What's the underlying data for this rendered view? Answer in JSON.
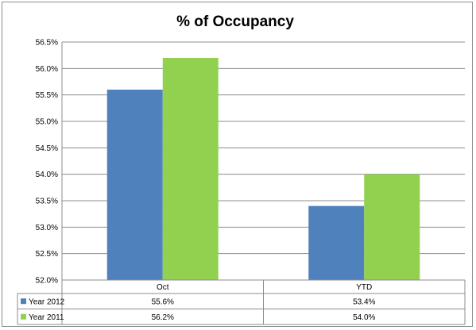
{
  "chart_data": {
    "type": "bar",
    "title": "% of Occupancy",
    "categories": [
      "Oct",
      "YTD"
    ],
    "series": [
      {
        "name": "Year 2012",
        "values": [
          55.6,
          53.4
        ],
        "labels": [
          "55.6%",
          "53.4%"
        ],
        "color": "#4f81bd"
      },
      {
        "name": "Year 2011",
        "values": [
          56.2,
          54.0
        ],
        "labels": [
          "56.2%",
          "54.0%"
        ],
        "color": "#92d050"
      }
    ],
    "ylim": [
      52.0,
      56.5
    ],
    "yticks": [
      {
        "value": 52.0,
        "label": "52.0%"
      },
      {
        "value": 52.5,
        "label": "52.5%"
      },
      {
        "value": 53.0,
        "label": "53.0%"
      },
      {
        "value": 53.5,
        "label": "53.5%"
      },
      {
        "value": 54.0,
        "label": "54.0%"
      },
      {
        "value": 54.5,
        "label": "54.5%"
      },
      {
        "value": 55.0,
        "label": "55.0%"
      },
      {
        "value": 55.5,
        "label": "55.5%"
      },
      {
        "value": 56.0,
        "label": "56.0%"
      },
      {
        "value": 56.5,
        "label": "56.5%"
      }
    ],
    "grid": true,
    "legend": "data-table"
  }
}
